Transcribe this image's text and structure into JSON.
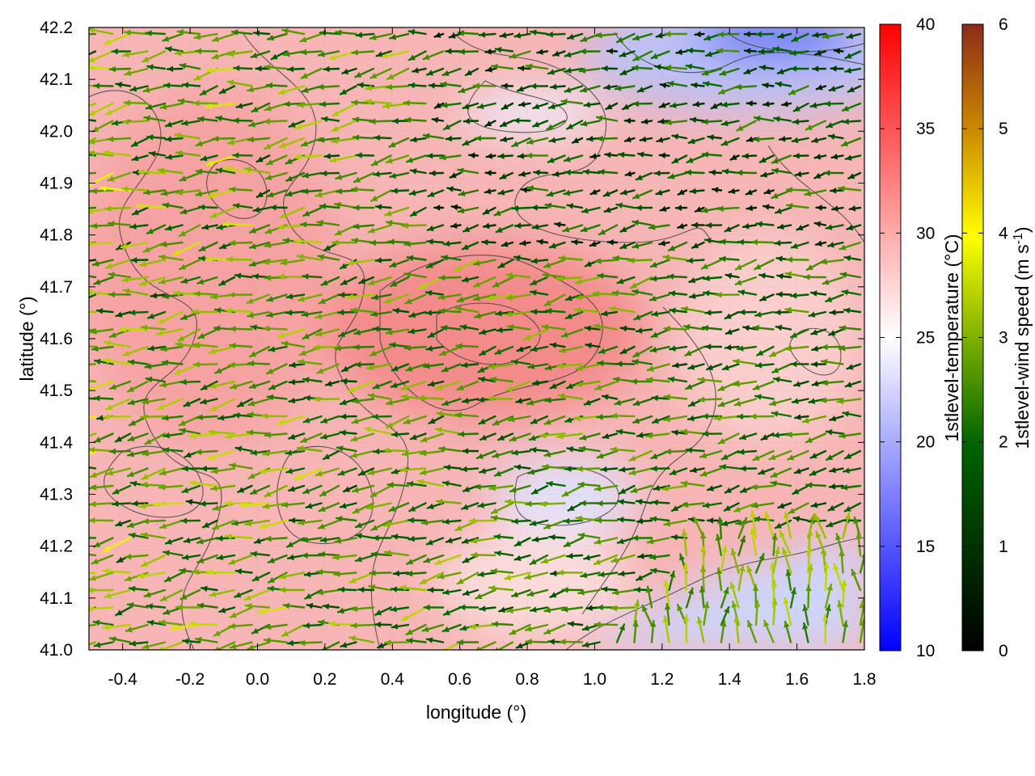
{
  "chart_data": {
    "type": "heatmap",
    "xlabel": "longitude (°)",
    "ylabel": "latitude (°)",
    "xlim": [
      -0.5,
      1.8
    ],
    "ylim": [
      41.0,
      42.2
    ],
    "x_ticks": [
      "-0.4",
      "-0.2",
      "0.0",
      "0.2",
      "0.4",
      "0.6",
      "0.8",
      "1.0",
      "1.2",
      "1.4",
      "1.6",
      "1.8"
    ],
    "y_ticks": [
      "41.0",
      "41.1",
      "41.2",
      "41.3",
      "41.4",
      "41.5",
      "41.6",
      "41.7",
      "41.8",
      "41.9",
      "42.0",
      "42.1",
      "42.2"
    ],
    "grid": true,
    "temperature_colorbar": {
      "label": "1stlevel-temperature (°C)",
      "range": [
        10,
        40
      ],
      "ticks": [
        "10",
        "15",
        "20",
        "25",
        "30",
        "35",
        "40"
      ],
      "colors": [
        "#0000ff",
        "#ffffff",
        "#ff0000"
      ]
    },
    "wind_colorbar": {
      "label": "1stlevel-wind speed (m s-1)",
      "range": [
        0,
        6
      ],
      "ticks": [
        "0",
        "1",
        "2",
        "3",
        "4",
        "5",
        "6"
      ],
      "colors": [
        "#000000",
        "#006400",
        "#7fb000",
        "#ffff00",
        "#cc8a00",
        "#8b2b1a"
      ]
    },
    "temperature_field_regions": [
      {
        "region": "most of domain",
        "temperature_c": 30
      },
      {
        "region": "hot core near lon 0.6, lat 41.6",
        "temperature_c": 34
      },
      {
        "region": "north-east corner near lon 1.5, lat 42.15",
        "temperature_c": 16
      },
      {
        "region": "south-east corner near lon 1.6, lat 41.08",
        "temperature_c": 21
      },
      {
        "region": "pocket near lon 0.95, lat 41.32",
        "temperature_c": 22
      }
    ],
    "wind_regime": {
      "west": {
        "direction": "westward",
        "speed_ms": [
          2.5,
          4.2
        ]
      },
      "center": {
        "direction": "westward",
        "speed_ms": [
          1.5,
          3.5
        ]
      },
      "south-east": {
        "direction": "northward",
        "speed_ms": [
          2.0,
          3.5
        ]
      }
    }
  }
}
